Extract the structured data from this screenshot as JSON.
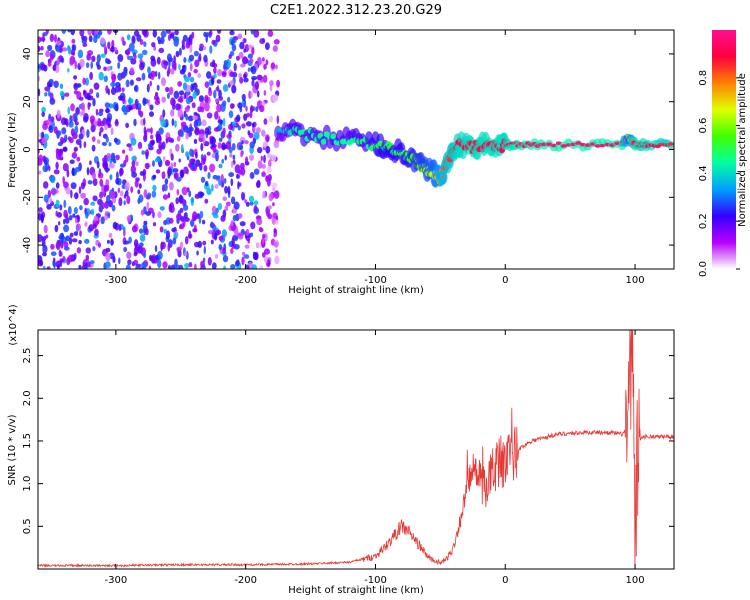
{
  "title": "C2E1.2022.312.23.20.G29",
  "chart_data": [
    {
      "type": "heatmap",
      "xlabel": "Height of straight line (km)",
      "ylabel": "Frequency (Hz)",
      "xlim": [
        -360,
        130
      ],
      "ylim": [
        -50,
        50
      ],
      "x_ticks": [
        -300,
        -200,
        -100,
        0,
        100
      ],
      "x_tick_labels": [
        "-300",
        "-200",
        "-100",
        "0",
        "100"
      ],
      "y_ticks": [
        -40,
        -20,
        0,
        20,
        40
      ],
      "y_tick_labels": [
        "-40",
        "-20",
        "0",
        "20",
        "40"
      ],
      "colorbar": {
        "label": "Normalized spectral amplitude",
        "range": [
          0,
          1
        ],
        "ticks": [
          0,
          0.2,
          0.4,
          0.6,
          0.8
        ],
        "tick_labels": [
          "0.0",
          "0.2",
          "0.4",
          "0.6",
          "0.8"
        ],
        "colors": [
          "#ffffff",
          "#b800ff",
          "#3300ff",
          "#00a0ff",
          "#00ffa0",
          "#40ff00",
          "#e0ff00",
          "#ff8000",
          "#ff0040",
          "#ff1090"
        ]
      },
      "noise_region": {
        "x": [
          -360,
          -175
        ],
        "amplitude": 0.25
      },
      "ridge": {
        "x": [
          -175,
          -160,
          -140,
          -120,
          -100,
          -90,
          -80,
          -70,
          -62,
          -55,
          -50,
          -45,
          -40,
          -35,
          -25,
          -15,
          -5,
          0,
          10,
          30,
          60,
          90,
          95,
          100,
          110,
          130
        ],
        "y": [
          8,
          7,
          5,
          4,
          2,
          1,
          -2,
          -5,
          -8,
          -10,
          -12,
          -6,
          0,
          2,
          1,
          2,
          1,
          2,
          2,
          2,
          2,
          2,
          5,
          2,
          2,
          2
        ],
        "amplitude": [
          0.35,
          0.45,
          0.45,
          0.45,
          0.5,
          0.5,
          0.5,
          0.55,
          0.6,
          0.65,
          0.75,
          0.85,
          0.85,
          0.9,
          0.9,
          0.9,
          0.9,
          0.9,
          0.95,
          0.95,
          0.95,
          0.95,
          0.6,
          0.95,
          0.9,
          0.85
        ]
      }
    },
    {
      "type": "line",
      "xlabel": "Height of straight line (km)",
      "ylabel": "SNR (10 * v/v)",
      "y_multiplier": "(x10^4)",
      "xlim": [
        -360,
        130
      ],
      "ylim": [
        0,
        2.8
      ],
      "x_ticks": [
        -300,
        -200,
        -100,
        0,
        100
      ],
      "x_tick_labels": [
        "-300",
        "-200",
        "-100",
        "0",
        "100"
      ],
      "y_ticks": [
        0.5,
        1.0,
        1.5,
        2.0,
        2.5
      ],
      "y_tick_labels": [
        "0.5",
        "1.0",
        "1.5",
        "2.0",
        "2.5"
      ],
      "color": "#e53935",
      "series": [
        {
          "x": [
            -360,
            -300,
            -250,
            -200,
            -150,
            -120,
            -100,
            -90,
            -80,
            -75,
            -70,
            -65,
            -60,
            -55,
            -50,
            -45,
            -40,
            -35,
            -30,
            -25,
            -20,
            -15,
            -10,
            -5,
            0,
            5,
            10,
            20,
            40,
            60,
            80,
            90,
            95,
            98,
            100,
            102,
            105,
            110,
            120,
            130
          ],
          "y": [
            0.04,
            0.04,
            0.05,
            0.05,
            0.06,
            0.08,
            0.15,
            0.3,
            0.5,
            0.45,
            0.35,
            0.25,
            0.15,
            0.1,
            0.07,
            0.12,
            0.25,
            0.55,
            0.9,
            1.2,
            1.05,
            0.95,
            1.15,
            1.25,
            1.25,
            1.3,
            1.4,
            1.5,
            1.58,
            1.6,
            1.6,
            1.58,
            1.65,
            2.8,
            0.1,
            1.4,
            1.55,
            1.55,
            1.55,
            1.55
          ]
        }
      ]
    }
  ]
}
